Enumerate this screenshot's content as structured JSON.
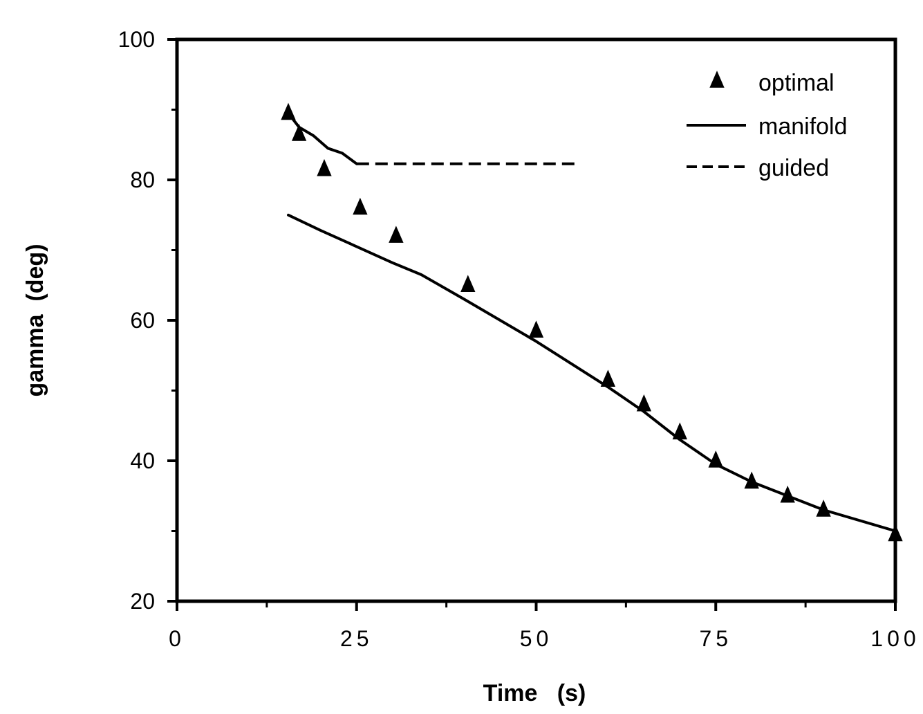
{
  "chart_data": {
    "type": "line",
    "xlabel": "Time   (s)",
    "ylabel": "gamma  (deg)",
    "xlim": [
      0,
      100
    ],
    "ylim": [
      20,
      100
    ],
    "x_ticks": [
      "0",
      "25",
      "50",
      "75",
      "100"
    ],
    "y_ticks": [
      "20",
      "40",
      "60",
      "80",
      "100"
    ],
    "legend": {
      "placement": "top-right",
      "entries": [
        {
          "label": "optimal",
          "marker": "triangle"
        },
        {
          "label": "manifold",
          "style": "solid"
        },
        {
          "label": "guided",
          "style": "dashed"
        }
      ]
    },
    "series": [
      {
        "name": "optimal",
        "type": "scatter",
        "x": [
          15.5,
          17,
          20.5,
          25.5,
          30.5,
          40.5,
          50,
          60,
          65,
          70,
          75,
          80,
          85,
          90,
          100
        ],
        "y": [
          89.5,
          86.5,
          81.5,
          76,
          72,
          65,
          58.5,
          51.5,
          48,
          44,
          40,
          37,
          35,
          33,
          29.5
        ]
      },
      {
        "name": "manifold",
        "type": "line",
        "style": "solid",
        "x": [
          15.5,
          20,
          25,
          30,
          34,
          40,
          50,
          60,
          65,
          70,
          75,
          80,
          85,
          90,
          100
        ],
        "y": [
          75,
          72.8,
          70.5,
          68.2,
          66.5,
          63,
          57,
          50.5,
          47,
          43,
          39.5,
          37,
          35,
          33,
          30
        ]
      },
      {
        "name": "manifold",
        "type": "line",
        "style": "solid",
        "x": [
          15.5,
          17,
          19,
          21,
          23,
          25
        ],
        "y": [
          89.5,
          87.5,
          86.3,
          84.5,
          83.8,
          82.3
        ]
      },
      {
        "name": "guided",
        "type": "line",
        "style": "dashed",
        "x": [
          25,
          55.5
        ],
        "y": [
          82.3,
          82.3
        ]
      }
    ]
  }
}
